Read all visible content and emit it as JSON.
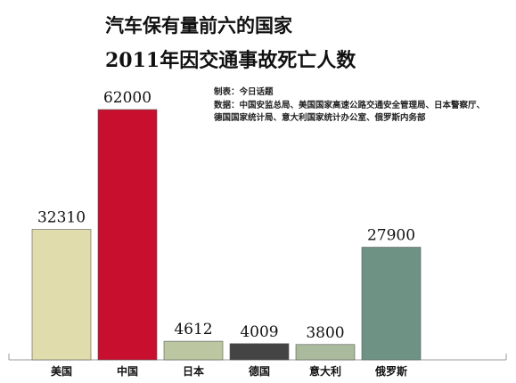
{
  "chart_data": {
    "type": "bar",
    "title": "汽车保有量前六的国家",
    "subtitle": "2011年因交通事故死亡人数",
    "producer": "制表：今日话题",
    "source_line1": "数据：中国安监总局、美国国家高速公路交通安全管理局、日本警察厅、",
    "source_line2": "德国国家统计局、意大利国家统计办公室、俄罗斯内务部",
    "categories": [
      "美国",
      "中国",
      "日本",
      "德国",
      "意大利",
      "俄罗斯"
    ],
    "values": [
      32310,
      62000,
      4612,
      4009,
      3800,
      27900
    ],
    "value_labels": [
      "32310",
      "62000",
      "4612",
      "4009",
      "3800",
      "27900"
    ],
    "colors": [
      "#e0dcab",
      "#c8102e",
      "#bcc7a1",
      "#444444",
      "#a9bb9c",
      "#6e9283"
    ],
    "ylim": [
      0,
      62000
    ],
    "grid": false,
    "xlabel": "",
    "ylabel": ""
  }
}
